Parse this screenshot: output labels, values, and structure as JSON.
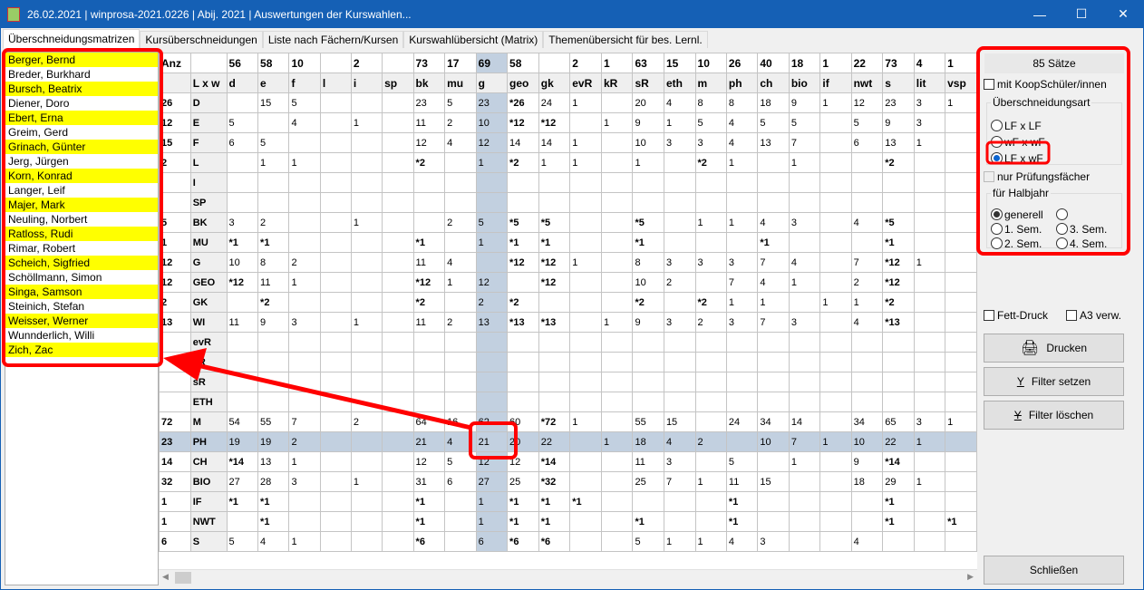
{
  "window": {
    "title": "26.02.2021 | winprosa-2021.0226 | Abij. 2021 | Auswertungen der Kurswahlen...",
    "minimize": "—",
    "maximize": "☐",
    "close": "✕"
  },
  "tabs": [
    {
      "label": "Überschneidungsmatrizen",
      "active": true
    },
    {
      "label": "Kursüberschneidungen"
    },
    {
      "label": "Liste nach Fächern/Kursen"
    },
    {
      "label": "Kurswahlübersicht (Matrix)"
    },
    {
      "label": "Themenübersicht für bes. Lernl."
    }
  ],
  "students": [
    {
      "name": "Berger, Bernd",
      "highlighted": true
    },
    {
      "name": "Breder, Burkhard",
      "highlighted": false
    },
    {
      "name": "Bursch, Beatrix",
      "highlighted": true
    },
    {
      "name": "Diener, Doro",
      "highlighted": false
    },
    {
      "name": "Ebert, Erna",
      "highlighted": true
    },
    {
      "name": "Greim, Gerd",
      "highlighted": false
    },
    {
      "name": "Grinach, Günter",
      "highlighted": true
    },
    {
      "name": "Jerg, Jürgen",
      "highlighted": false
    },
    {
      "name": "Korn, Konrad",
      "highlighted": true
    },
    {
      "name": "Langer, Leif",
      "highlighted": false
    },
    {
      "name": "Majer, Mark",
      "highlighted": true
    },
    {
      "name": "Neuling, Norbert",
      "highlighted": false
    },
    {
      "name": "Ratloss, Rudi",
      "highlighted": true
    },
    {
      "name": "Rimar, Robert",
      "highlighted": false
    },
    {
      "name": "Scheich, Sigfried",
      "highlighted": true
    },
    {
      "name": "Schöllmann, Simon",
      "highlighted": false
    },
    {
      "name": "Singa, Samson",
      "highlighted": true
    },
    {
      "name": "Steinich, Stefan",
      "highlighted": false
    },
    {
      "name": "Weisser, Werner",
      "highlighted": true
    },
    {
      "name": "Wunnderlich, Willi",
      "highlighted": false
    },
    {
      "name": "Zich, Zac",
      "highlighted": true
    }
  ],
  "matrix": {
    "anz_label": "Anz",
    "corner_label": "L x w",
    "selected_column": "g",
    "selected_row": "PH",
    "highlight_color": "#c2d0e0",
    "columns": [
      {
        "k": "d",
        "n": "56"
      },
      {
        "k": "e",
        "n": "58"
      },
      {
        "k": "f",
        "n": "10"
      },
      {
        "k": "l",
        "n": ""
      },
      {
        "k": "i",
        "n": "2"
      },
      {
        "k": "sp",
        "n": ""
      },
      {
        "k": "bk",
        "n": "73"
      },
      {
        "k": "mu",
        "n": "17"
      },
      {
        "k": "g",
        "n": "69"
      },
      {
        "k": "geo",
        "n": "58"
      },
      {
        "k": "gk",
        "n": ""
      },
      {
        "k": "evR",
        "n": "2"
      },
      {
        "k": "kR",
        "n": "1"
      },
      {
        "k": "sR",
        "n": "63"
      },
      {
        "k": "eth",
        "n": "15"
      },
      {
        "k": "m",
        "n": "10"
      },
      {
        "k": "ph",
        "n": "26"
      },
      {
        "k": "ch",
        "n": "40"
      },
      {
        "k": "bio",
        "n": "18"
      },
      {
        "k": "if",
        "n": "1"
      },
      {
        "k": "nwt",
        "n": "22"
      },
      {
        "k": "s",
        "n": "73"
      },
      {
        "k": "lit",
        "n": "4"
      },
      {
        "k": "vsp",
        "n": "1"
      }
    ],
    "bold_marker": "*",
    "rows": [
      {
        "anz": "26",
        "label": "D",
        "cells": [
          "",
          "15",
          "5",
          "",
          "",
          "",
          "23",
          "5",
          "23",
          "*26",
          "24",
          "1",
          "",
          "20",
          "4",
          "8",
          "8",
          "18",
          "9",
          "1",
          "12",
          "23",
          "3",
          "1"
        ]
      },
      {
        "anz": "12",
        "label": "E",
        "cells": [
          "5",
          "",
          "4",
          "",
          "1",
          "",
          "11",
          "2",
          "10",
          "*12",
          "*12",
          "",
          "1",
          "9",
          "1",
          "5",
          "4",
          "5",
          "5",
          "",
          "5",
          "9",
          "3",
          ""
        ]
      },
      {
        "anz": "15",
        "label": "F",
        "cells": [
          "6",
          "5",
          "",
          "",
          "",
          "",
          "12",
          "4",
          "12",
          "14",
          "14",
          "1",
          "",
          "10",
          "3",
          "3",
          "4",
          "13",
          "7",
          "",
          "6",
          "13",
          "1",
          ""
        ]
      },
      {
        "anz": "2",
        "label": "L",
        "cells": [
          "",
          "1",
          "1",
          "",
          "",
          "",
          "*2",
          "",
          "1",
          "*2",
          "1",
          "1",
          "",
          "1",
          "",
          "*2",
          "1",
          "",
          "1",
          "",
          "",
          "*2",
          "",
          ""
        ]
      },
      {
        "anz": "",
        "label": "I",
        "cells": []
      },
      {
        "anz": "",
        "label": "SP",
        "cells": []
      },
      {
        "anz": "5",
        "label": "BK",
        "cells": [
          "3",
          "2",
          "",
          "",
          "1",
          "",
          "",
          "2",
          "5",
          "*5",
          "*5",
          "",
          "",
          "*5",
          "",
          "1",
          "1",
          "4",
          "3",
          "",
          "4",
          "*5",
          "",
          ""
        ]
      },
      {
        "anz": "1",
        "label": "MU",
        "cells": [
          "*1",
          "*1",
          "",
          "",
          "",
          "",
          "*1",
          "",
          "1",
          "*1",
          "*1",
          "",
          "",
          "*1",
          "",
          "",
          "",
          "*1",
          "",
          "",
          "",
          "*1",
          "",
          ""
        ]
      },
      {
        "anz": "12",
        "label": "G",
        "cells": [
          "10",
          "8",
          "2",
          "",
          "",
          "",
          "11",
          "4",
          "",
          "*12",
          "*12",
          "1",
          "",
          "8",
          "3",
          "3",
          "3",
          "7",
          "4",
          "",
          "7",
          "*12",
          "1",
          ""
        ]
      },
      {
        "anz": "12",
        "label": "GEO",
        "cells": [
          "*12",
          "11",
          "1",
          "",
          "",
          "",
          "*12",
          "1",
          "12",
          "",
          "*12",
          "",
          "",
          "10",
          "2",
          "",
          "7",
          "4",
          "1",
          "",
          "2",
          "*12",
          "",
          ""
        ]
      },
      {
        "anz": "2",
        "label": "GK",
        "cells": [
          "",
          "*2",
          "",
          "",
          "",
          "",
          "*2",
          "",
          "2",
          "*2",
          "",
          "",
          "",
          "*2",
          "",
          "*2",
          "1",
          "1",
          "",
          "1",
          "1",
          "*2",
          "",
          ""
        ]
      },
      {
        "anz": "13",
        "label": "WI",
        "cells": [
          "11",
          "9",
          "3",
          "",
          "1",
          "",
          "11",
          "2",
          "13",
          "*13",
          "*13",
          "",
          "1",
          "9",
          "3",
          "2",
          "3",
          "7",
          "3",
          "",
          "4",
          "*13",
          "",
          ""
        ]
      },
      {
        "anz": "",
        "label": "evR",
        "cells": []
      },
      {
        "anz": "",
        "label": "kR",
        "cells": []
      },
      {
        "anz": "",
        "label": "sR",
        "cells": []
      },
      {
        "anz": "",
        "label": "ETH",
        "cells": []
      },
      {
        "anz": "72",
        "label": "M",
        "cells": [
          "54",
          "55",
          "7",
          "",
          "2",
          "",
          "64",
          "16",
          "62",
          "60",
          "*72",
          "1",
          "",
          "55",
          "15",
          "",
          "24",
          "34",
          "14",
          "",
          "34",
          "65",
          "3",
          "1"
        ]
      },
      {
        "anz": "23",
        "label": "PH",
        "cells": [
          "19",
          "19",
          "2",
          "",
          "",
          "",
          "21",
          "4",
          "21",
          "20",
          "22",
          "",
          "1",
          "18",
          "4",
          "2",
          "",
          "10",
          "7",
          "1",
          "10",
          "22",
          "1",
          ""
        ]
      },
      {
        "anz": "14",
        "label": "CH",
        "cells": [
          "*14",
          "13",
          "1",
          "",
          "",
          "",
          "12",
          "5",
          "12",
          "12",
          "*14",
          "",
          "",
          "11",
          "3",
          "",
          "5",
          "",
          "1",
          "",
          "9",
          "*14",
          "",
          ""
        ]
      },
      {
        "anz": "32",
        "label": "BIO",
        "cells": [
          "27",
          "28",
          "3",
          "",
          "1",
          "",
          "31",
          "6",
          "27",
          "25",
          "*32",
          "",
          "",
          "25",
          "7",
          "1",
          "11",
          "15",
          "",
          "",
          "18",
          "29",
          "1",
          ""
        ]
      },
      {
        "anz": "1",
        "label": "IF",
        "cells": [
          "*1",
          "*1",
          "",
          "",
          "",
          "",
          "*1",
          "",
          "1",
          "*1",
          "*1",
          "*1",
          "",
          "",
          "",
          "",
          "*1",
          "",
          "",
          "",
          "",
          "*1",
          "",
          ""
        ]
      },
      {
        "anz": "1",
        "label": "NWT",
        "cells": [
          "",
          "*1",
          "",
          "",
          "",
          "",
          "*1",
          "",
          "1",
          "*1",
          "*1",
          "",
          "",
          "*1",
          "",
          "",
          "*1",
          "",
          "",
          "",
          "",
          "*1",
          "",
          "*1"
        ]
      },
      {
        "anz": "6",
        "label": "S",
        "cells": [
          "5",
          "4",
          "1",
          "",
          "",
          "",
          "*6",
          "",
          "6",
          "*6",
          "*6",
          "",
          "",
          "5",
          "1",
          "1",
          "4",
          "3",
          "",
          "",
          "4",
          "",
          "",
          ""
        ]
      }
    ]
  },
  "panel": {
    "count": "85 Sätze",
    "koop": {
      "label": "mit KoopSchüler/innen",
      "checked": false
    },
    "art": {
      "legend": "Überschneidungsart",
      "options": [
        "LF x LF",
        "wF x wF",
        "LF x wF"
      ],
      "selected": "LF x wF"
    },
    "pruef": {
      "label": "nur Prüfungsfächer",
      "checked": false,
      "disabled": true
    },
    "halbjahr": {
      "legend": "für Halbjahr",
      "options": [
        "generell",
        "",
        "1. Sem.",
        "3. Sem.",
        "2. Sem.",
        "4. Sem."
      ],
      "selected": "generell"
    },
    "fett": {
      "label": "Fett-Druck",
      "checked": false
    },
    "a3": {
      "label": "A3 verw.",
      "checked": false
    },
    "print": "Drucken",
    "filter_set": "Filter setzen",
    "filter_clear": "Filter löschen",
    "close": "Schließen"
  },
  "annotation_color": "#ff0000"
}
